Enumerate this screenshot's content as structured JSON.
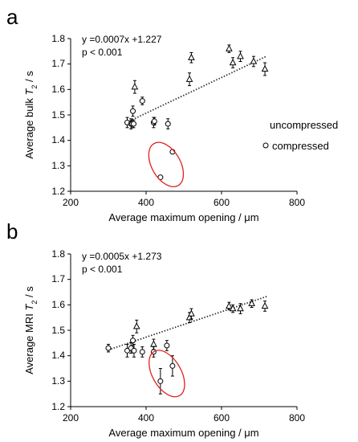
{
  "chart_data": [
    {
      "panel_label": "a",
      "type": "scatter",
      "xlabel": "Average maximum opening / μm",
      "ylabel_prefix": "Average bulk ",
      "ylabel_symbol": "T",
      "ylabel_subscript": "2",
      "ylabel_suffix": " / s",
      "xlim": [
        200,
        800
      ],
      "ylim": [
        1.2,
        1.8
      ],
      "x_ticks": [
        "200",
        "400",
        "600",
        "800"
      ],
      "y_ticks": [
        "1.2",
        "1.3",
        "1.4",
        "1.5",
        "1.6",
        "1.7",
        "1.8"
      ],
      "grid": false,
      "equation": "y =0.0007x +1.227",
      "p_value": "p < 0.001",
      "trendline": {
        "slope": 0.0007,
        "intercept": 1.227,
        "x_range": [
          350,
          720
        ],
        "style": "dotted"
      },
      "legend": {
        "placement": "right",
        "entries": [
          {
            "label": "uncompressed",
            "marker": "triangle"
          },
          {
            "label": "compressed",
            "marker": "circle"
          }
        ]
      },
      "series": [
        {
          "label": "uncompressed",
          "marker": "triangle",
          "points": [
            {
              "x": 370,
              "y": 1.61,
              "err": 0.025
            },
            {
              "x": 515,
              "y": 1.64,
              "err": 0.025
            },
            {
              "x": 520,
              "y": 1.725,
              "err": 0.02
            },
            {
              "x": 620,
              "y": 1.76,
              "err": 0.015
            },
            {
              "x": 630,
              "y": 1.705,
              "err": 0.02
            },
            {
              "x": 650,
              "y": 1.73,
              "err": 0.02
            },
            {
              "x": 685,
              "y": 1.71,
              "err": 0.02
            },
            {
              "x": 715,
              "y": 1.68,
              "err": 0.025
            }
          ]
        },
        {
          "label": "compressed",
          "marker": "circle",
          "points": [
            {
              "x": 350,
              "y": 1.47,
              "err": 0.02
            },
            {
              "x": 360,
              "y": 1.465,
              "err": 0.02
            },
            {
              "x": 363,
              "y": 1.465,
              "err": 0.015
            },
            {
              "x": 367,
              "y": 1.465,
              "err": 0.015
            },
            {
              "x": 365,
              "y": 1.515,
              "err": 0.02
            },
            {
              "x": 390,
              "y": 1.555,
              "err": 0.015
            },
            {
              "x": 420,
              "y": 1.47,
              "err": 0.02
            },
            {
              "x": 422,
              "y": 1.475,
              "err": 0.015
            },
            {
              "x": 458,
              "y": 1.465,
              "err": 0.02
            },
            {
              "x": 438,
              "y": 1.255,
              "err": 0.0
            },
            {
              "x": 470,
              "y": 1.355,
              "err": 0.0
            }
          ]
        }
      ],
      "highlight": {
        "shape": "ellipse",
        "color": "#e0201f",
        "cx": 453,
        "cy": 1.305,
        "rx": 38,
        "ry": 0.095
      }
    },
    {
      "panel_label": "b",
      "type": "scatter",
      "xlabel": "Average maximum opening / μm",
      "ylabel_prefix": "Average MRI ",
      "ylabel_symbol": "T",
      "ylabel_subscript": "2",
      "ylabel_suffix": " / s",
      "xlim": [
        200,
        800
      ],
      "ylim": [
        1.2,
        1.8
      ],
      "x_ticks": [
        "200",
        "400",
        "600",
        "800"
      ],
      "y_ticks": [
        "1.2",
        "1.3",
        "1.4",
        "1.5",
        "1.6",
        "1.7",
        "1.8"
      ],
      "grid": false,
      "equation": "y =0.0005x +1.273",
      "p_value": "p < 0.001",
      "trendline": {
        "slope": 0.0005,
        "intercept": 1.273,
        "x_range": [
          300,
          720
        ],
        "style": "dotted"
      },
      "series": [
        {
          "label": "uncompressed",
          "marker": "triangle",
          "points": [
            {
              "x": 375,
              "y": 1.515,
              "err": 0.025
            },
            {
              "x": 420,
              "y": 1.445,
              "err": 0.02
            },
            {
              "x": 515,
              "y": 1.55,
              "err": 0.02
            },
            {
              "x": 520,
              "y": 1.565,
              "err": 0.02
            },
            {
              "x": 620,
              "y": 1.595,
              "err": 0.015
            },
            {
              "x": 630,
              "y": 1.585,
              "err": 0.015
            },
            {
              "x": 650,
              "y": 1.585,
              "err": 0.02
            },
            {
              "x": 680,
              "y": 1.605,
              "err": 0.015
            },
            {
              "x": 715,
              "y": 1.595,
              "err": 0.02
            }
          ]
        },
        {
          "label": "compressed",
          "marker": "circle",
          "points": [
            {
              "x": 300,
              "y": 1.43,
              "err": 0.015
            },
            {
              "x": 350,
              "y": 1.42,
              "err": 0.025
            },
            {
              "x": 360,
              "y": 1.43,
              "err": 0.02
            },
            {
              "x": 365,
              "y": 1.46,
              "err": 0.02
            },
            {
              "x": 368,
              "y": 1.42,
              "err": 0.025
            },
            {
              "x": 390,
              "y": 1.415,
              "err": 0.02
            },
            {
              "x": 420,
              "y": 1.415,
              "err": 0.02
            },
            {
              "x": 455,
              "y": 1.44,
              "err": 0.02
            },
            {
              "x": 438,
              "y": 1.3,
              "err": 0.05
            },
            {
              "x": 470,
              "y": 1.36,
              "err": 0.04
            }
          ]
        }
      ],
      "highlight": {
        "shape": "ellipse",
        "color": "#e0201f",
        "cx": 455,
        "cy": 1.33,
        "rx": 38,
        "ry": 0.1
      }
    }
  ]
}
